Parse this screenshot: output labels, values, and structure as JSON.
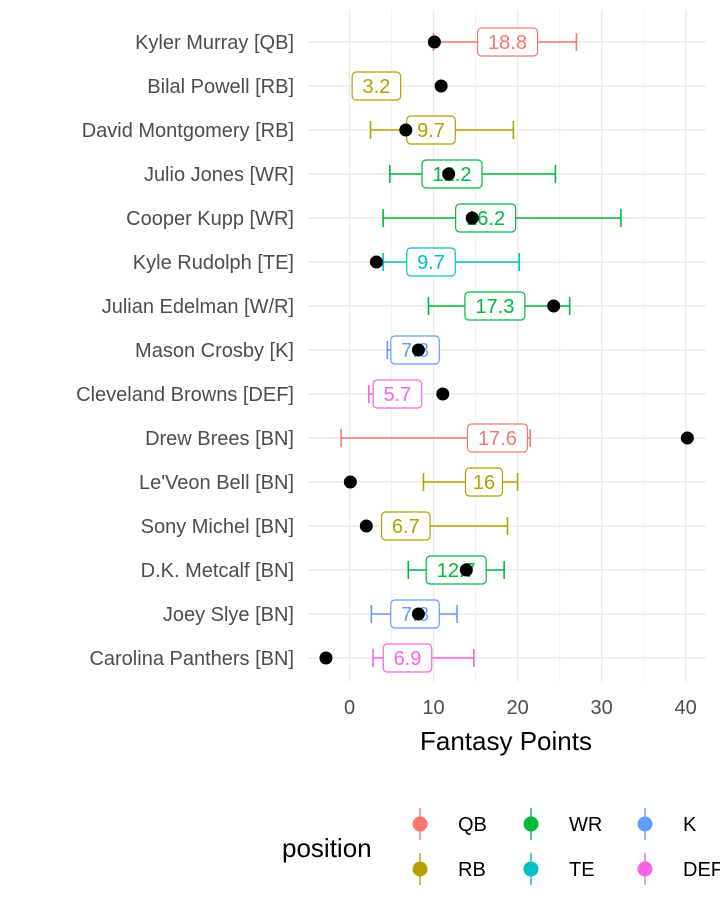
{
  "chart_data": {
    "type": "scatter",
    "xlabel": "Fantasy Points",
    "ylabel": "",
    "xlim": [
      -5,
      42
    ],
    "xticks": [
      0,
      10,
      20,
      30,
      40
    ],
    "grid": true,
    "legend_position": "bottom",
    "legend_title": "position",
    "categories": [
      "Kyler Murray [QB]",
      "Bilal Powell [RB]",
      "David Montgomery [RB]",
      "Julio Jones [WR]",
      "Cooper Kupp [WR]",
      "Kyle Rudolph [TE]",
      "Julian Edelman [W/R]",
      "Mason Crosby [K]",
      "Cleveland Browns [DEF]",
      "Drew Brees [BN]",
      "Le'Veon Bell [BN]",
      "Sony Michel [BN]",
      "D.K. Metcalf [BN]",
      "Joey Slye [BN]",
      "Carolina Panthers [BN]"
    ],
    "position": [
      "QB",
      "RB",
      "RB",
      "WR",
      "WR",
      "TE",
      "WR",
      "K",
      "DEF",
      "QB",
      "RB",
      "RB",
      "WR",
      "K",
      "DEF"
    ],
    "projection_label": [
      "18.8",
      "3.2",
      "9.7",
      "12.2",
      "16.2",
      "9.7",
      "17.3",
      "7.8",
      "5.7",
      "17.6",
      "16",
      "6.7",
      "12.7",
      "7.8",
      "6.9"
    ],
    "projection": [
      18.8,
      3.2,
      9.7,
      12.2,
      16.2,
      9.7,
      17.3,
      7.8,
      5.7,
      17.6,
      16,
      6.7,
      12.7,
      7.8,
      6.9
    ],
    "range_low": [
      10,
      0.5,
      2.5,
      4.8,
      4,
      4,
      9.4,
      4.5,
      2.3,
      -1,
      8.8,
      4.4,
      7,
      2.6,
      2.8
    ],
    "range_high": [
      27,
      5.5,
      19.5,
      24.5,
      32.3,
      20.2,
      26.2,
      10.5,
      8.3,
      21.5,
      20,
      18.8,
      18.4,
      12.8,
      14.8
    ],
    "actual": [
      10.1,
      10.9,
      6.7,
      11.8,
      14.6,
      3.2,
      24.3,
      8.2,
      11.1,
      40.2,
      0.1,
      2.0,
      13.9,
      8.2,
      -2.8
    ],
    "legend": [
      {
        "name": "QB",
        "color": "#F8766D"
      },
      {
        "name": "RB",
        "color": "#B79F00"
      },
      {
        "name": "WR",
        "color": "#00BA38"
      },
      {
        "name": "TE",
        "color": "#00BFC4"
      },
      {
        "name": "K",
        "color": "#619CFF"
      },
      {
        "name": "DEF",
        "color": "#F564E3"
      }
    ],
    "colors": {
      "QB": "#F8766D",
      "RB": "#B79F00",
      "WR": "#00BA38",
      "TE": "#00BFC4",
      "K": "#619CFF",
      "DEF": "#F564E3"
    }
  }
}
